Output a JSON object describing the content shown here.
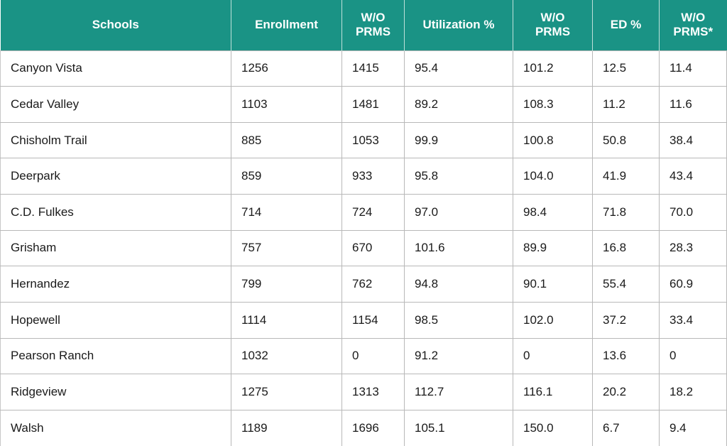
{
  "table": {
    "headers": [
      [
        "Schools"
      ],
      [
        "Enrollment"
      ],
      [
        "W/O",
        "PRMS"
      ],
      [
        "Utilization %"
      ],
      [
        "W/O",
        "PRMS"
      ],
      [
        "ED %"
      ],
      [
        "W/O",
        "PRMS*"
      ]
    ],
    "rows": [
      [
        "Canyon Vista",
        "1256",
        "1415",
        "95.4",
        "101.2",
        "12.5",
        "11.4"
      ],
      [
        "Cedar Valley",
        "1103",
        "1481",
        "89.2",
        "108.3",
        "11.2",
        "11.6"
      ],
      [
        "Chisholm Trail",
        "885",
        "1053",
        "99.9",
        "100.8",
        "50.8",
        "38.4"
      ],
      [
        "Deerpark",
        "859",
        "933",
        "95.8",
        "104.0",
        "41.9",
        "43.4"
      ],
      [
        "C.D. Fulkes",
        "714",
        "724",
        "97.0",
        "98.4",
        "71.8",
        "70.0"
      ],
      [
        "Grisham",
        "757",
        "670",
        "101.6",
        "89.9",
        "16.8",
        "28.3"
      ],
      [
        "Hernandez",
        "799",
        "762",
        "94.8",
        "90.1",
        "55.4",
        "60.9"
      ],
      [
        "Hopewell",
        "1114",
        "1154",
        "98.5",
        "102.0",
        "37.2",
        "33.4"
      ],
      [
        "Pearson Ranch",
        "1032",
        "0",
        "91.2",
        "0",
        "13.6",
        "0"
      ],
      [
        "Ridgeview",
        "1275",
        "1313",
        "112.7",
        "116.1",
        "20.2",
        "18.2"
      ],
      [
        "Walsh",
        "1189",
        "1696",
        "105.1",
        "150.0",
        "6.7",
        "9.4"
      ]
    ],
    "header_color": "#1a9385"
  }
}
